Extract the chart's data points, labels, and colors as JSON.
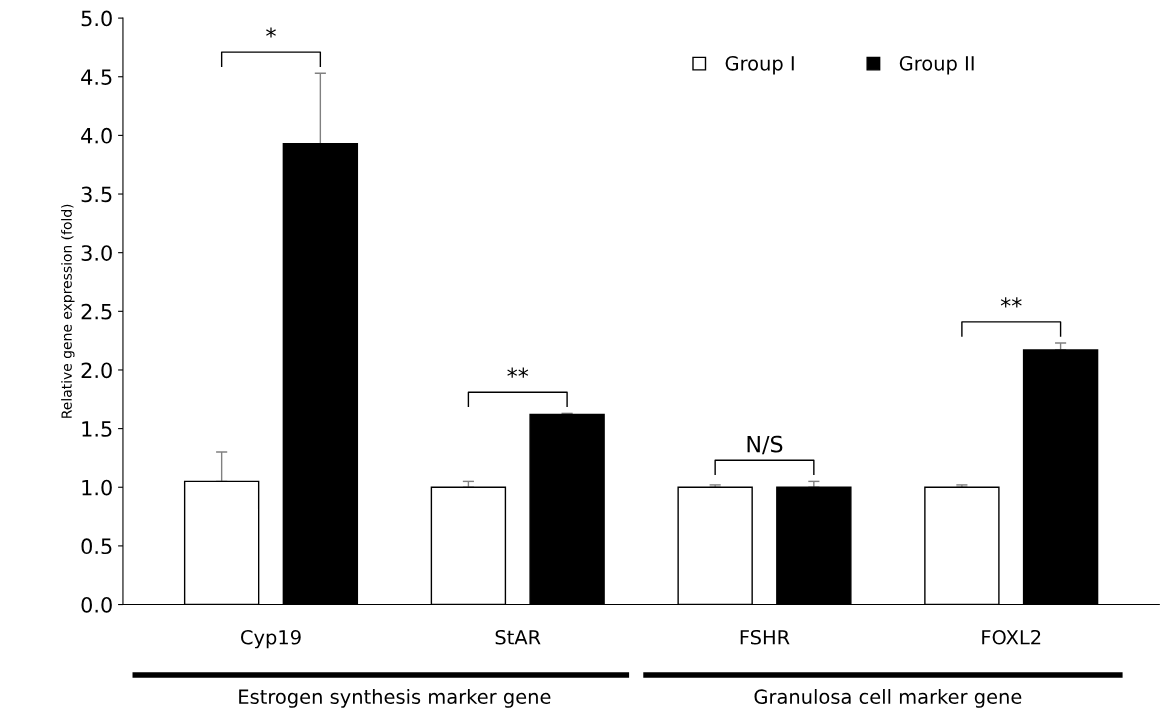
{
  "chart_data": {
    "type": "bar",
    "ylabel": "Relative gene expression (fold)",
    "categories": [
      "Cyp19",
      "StAR",
      "FSHR",
      "FOXL2"
    ],
    "series": [
      {
        "name": "Group I",
        "color": "#ffffff",
        "values": [
          1.05,
          1.0,
          1.0,
          1.0
        ],
        "errors": [
          [
            1.05,
            1.3
          ],
          [
            1.0,
            1.05
          ],
          [
            1.0,
            1.02
          ],
          [
            1.0,
            1.02
          ]
        ]
      },
      {
        "name": "Group II",
        "color": "#000000",
        "values": [
          3.93,
          1.62,
          1.0,
          2.17
        ],
        "errors": [
          [
            3.93,
            4.53
          ],
          [
            1.62,
            1.63
          ],
          [
            1.0,
            1.05
          ],
          [
            2.17,
            2.23
          ]
        ]
      }
    ],
    "ylim": [
      0,
      5
    ],
    "yticks": [
      {
        "value": 0,
        "label": "0.0"
      },
      {
        "value": 0.5,
        "label": "0.5"
      },
      {
        "value": 1,
        "label": "1.0"
      },
      {
        "value": 1.5,
        "label": "1.5"
      },
      {
        "value": 2,
        "label": "2.0"
      },
      {
        "value": 2.5,
        "label": "2.5"
      },
      {
        "value": 3,
        "label": "3.0"
      },
      {
        "value": 3.5,
        "label": "3.5"
      },
      {
        "value": 4,
        "label": "4.0"
      },
      {
        "value": 4.5,
        "label": "4.5"
      },
      {
        "value": 5,
        "label": "5.0"
      }
    ],
    "grid": false,
    "legend": "top",
    "marker": "square",
    "annotations": [
      "*",
      "**",
      "N/S",
      "**",
      "Estrogen synthesis marker gene",
      "Granulosa cell marker gene"
    ]
  }
}
